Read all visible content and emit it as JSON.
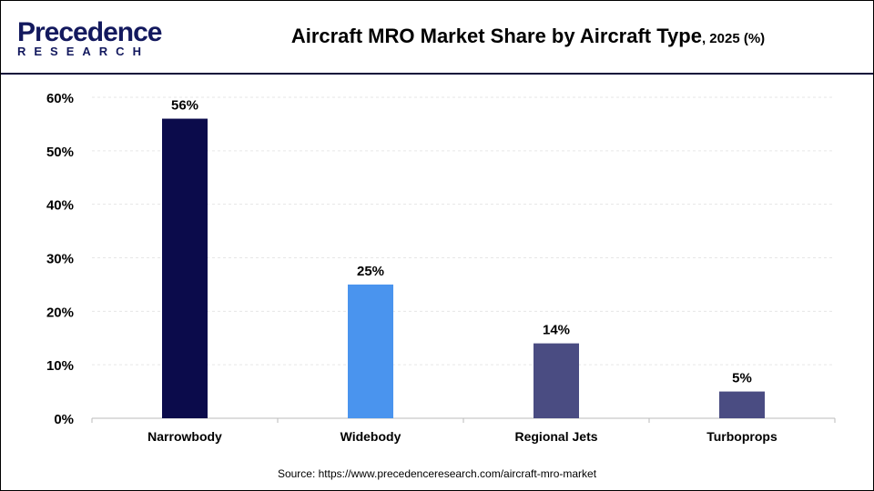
{
  "logo": {
    "line1": "Precedence",
    "line2": "RESEARCH"
  },
  "title": "Aircraft MRO Market Share by Aircraft Type",
  "title_suffix": ", 2025 (%)",
  "source": "Source: https://www.precedenceresearch.com/aircraft-mro-market",
  "chart_data": {
    "type": "bar",
    "title": "Aircraft MRO Market Share by Aircraft Type, 2025 (%)",
    "categories": [
      "Narrowbody",
      "Widebody",
      "Regional Jets",
      "Turboprops"
    ],
    "values": [
      56,
      25,
      14,
      5
    ],
    "data_labels": [
      "56%",
      "25%",
      "14%",
      "5%"
    ],
    "colors": [
      "#0b0b4b",
      "#4a94ee",
      "#4a4c82",
      "#4a4c82"
    ],
    "ylim": [
      0,
      60
    ],
    "yticks": [
      "0%",
      "10%",
      "20%",
      "30%",
      "40%",
      "50%",
      "60%"
    ],
    "grid": true,
    "xlabel": "",
    "ylabel": ""
  }
}
